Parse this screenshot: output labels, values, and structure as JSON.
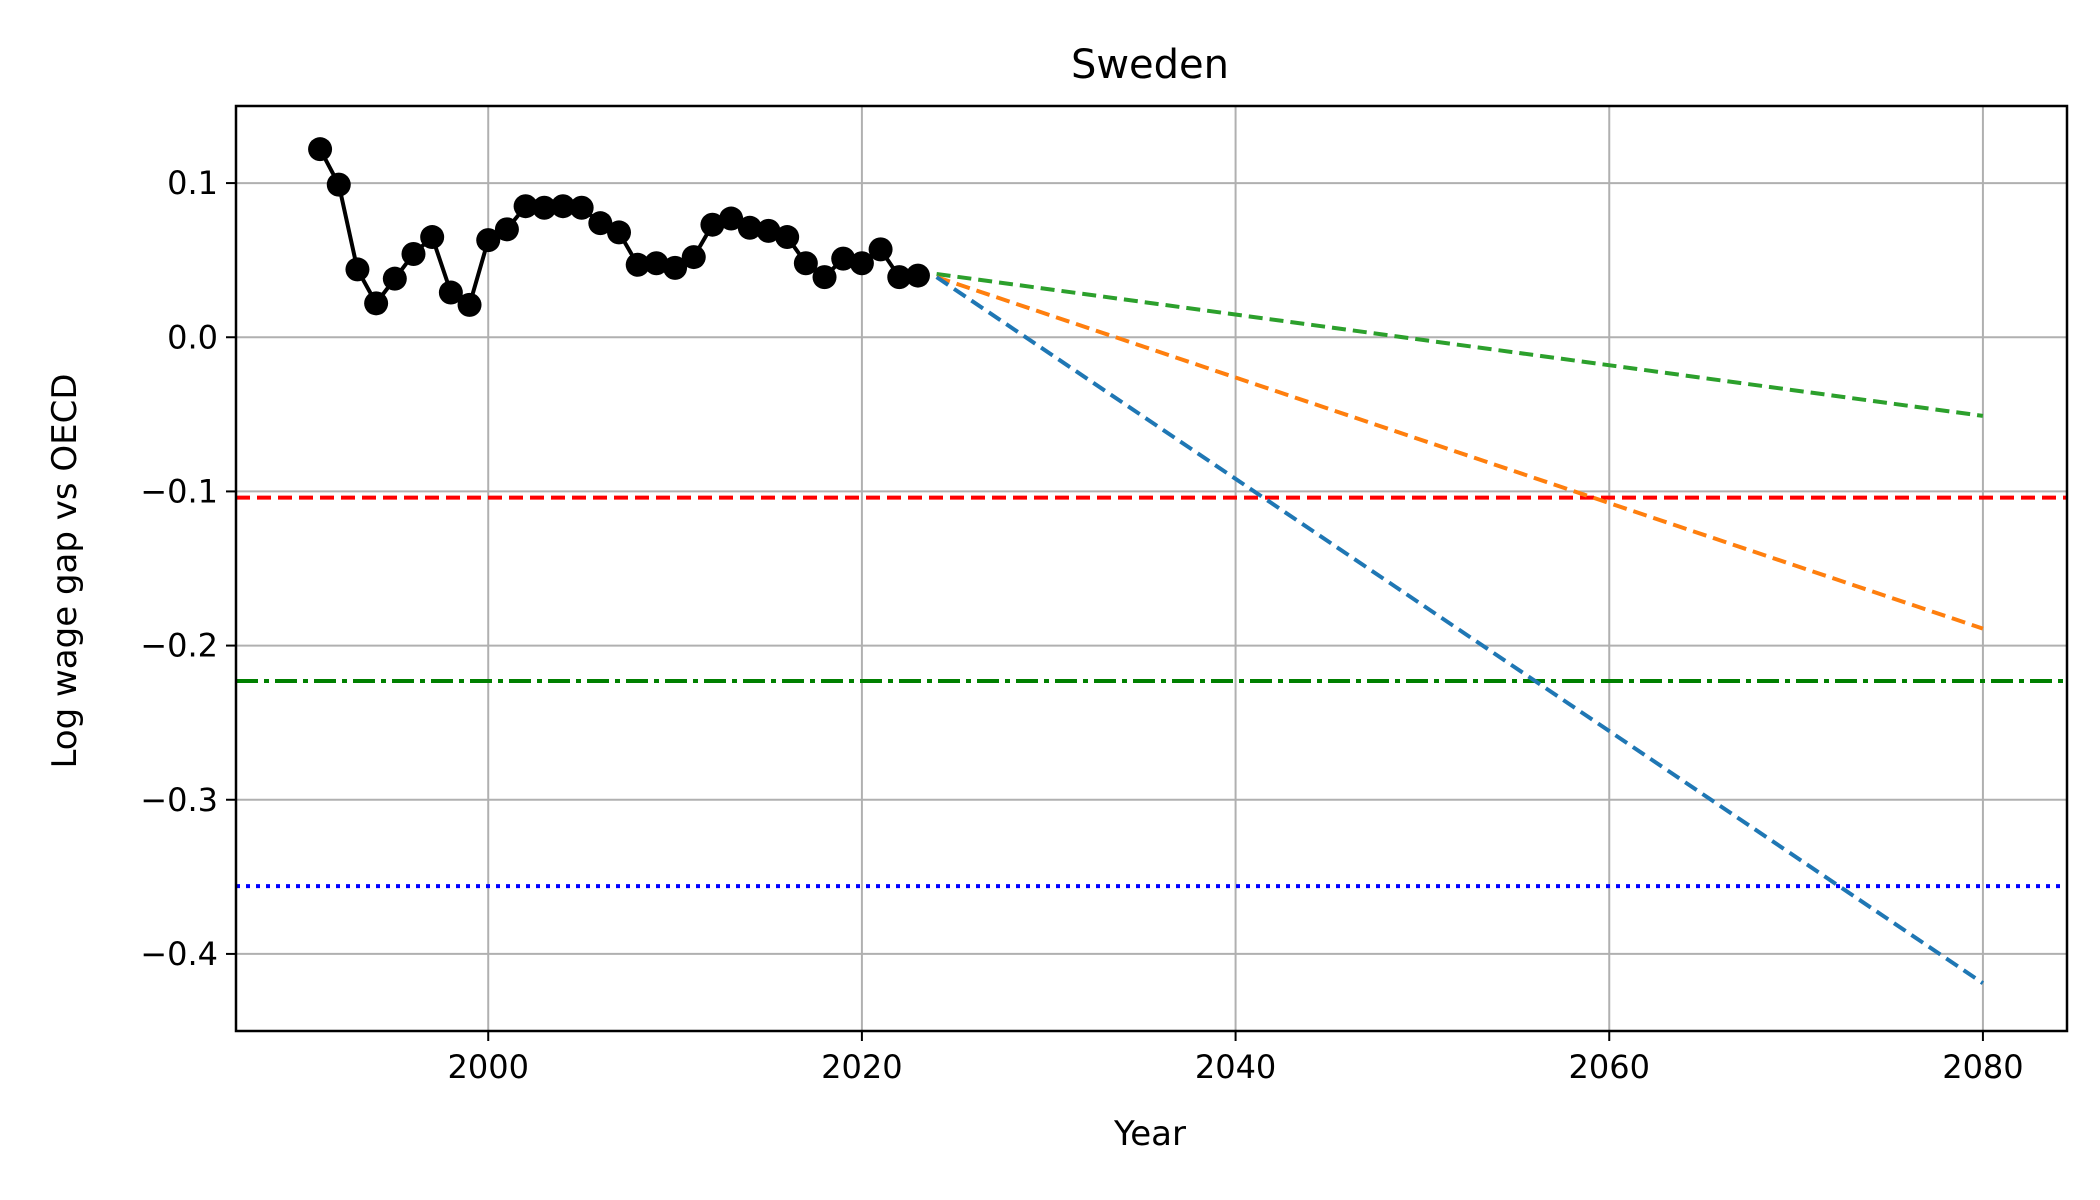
{
  "chart_data": {
    "type": "line",
    "title": "Sweden",
    "xlabel": "Year",
    "ylabel": "Log wage gap vs OECD",
    "xlim": [
      1986.5,
      2084.5
    ],
    "ylim": [
      -0.45,
      0.15
    ],
    "xticks": [
      2000,
      2020,
      2040,
      2060,
      2080
    ],
    "xtick_labels": [
      "2000",
      "2020",
      "2040",
      "2060",
      "2080"
    ],
    "yticks": [
      0.1,
      0.0,
      -0.1,
      -0.2,
      -0.3,
      -0.4
    ],
    "ytick_labels": [
      "0.1",
      "0.0",
      "−0.1",
      "−0.2",
      "−0.3",
      "−0.4"
    ],
    "grid": true,
    "series": [
      {
        "kind": "historical",
        "color": "#000000",
        "style": "solid-markers",
        "x": [
          1991,
          1992,
          1993,
          1994,
          1995,
          1996,
          1997,
          1998,
          1999,
          2000,
          2001,
          2002,
          2003,
          2004,
          2005,
          2006,
          2007,
          2008,
          2009,
          2010,
          2011,
          2012,
          2013,
          2014,
          2015,
          2016,
          2017,
          2018,
          2019,
          2020,
          2021,
          2022,
          2023
        ],
        "y": [
          0.122,
          0.099,
          0.044,
          0.022,
          0.038,
          0.054,
          0.065,
          0.029,
          0.021,
          0.063,
          0.07,
          0.085,
          0.084,
          0.085,
          0.084,
          0.074,
          0.068,
          0.047,
          0.048,
          0.045,
          0.052,
          0.073,
          0.077,
          0.071,
          0.069,
          0.065,
          0.048,
          0.039,
          0.051,
          0.048,
          0.057,
          0.039,
          0.04
        ]
      },
      {
        "kind": "projection",
        "color": "#2ca02c",
        "style": "dashed",
        "x": [
          2024,
          2080
        ],
        "y": [
          0.041,
          -0.051
        ]
      },
      {
        "kind": "projection",
        "color": "#ff7f0e",
        "style": "dashed",
        "x": [
          2024,
          2080
        ],
        "y": [
          0.039,
          -0.189
        ]
      },
      {
        "kind": "projection",
        "color": "#1f77b4",
        "style": "dashed",
        "x": [
          2024,
          2080
        ],
        "y": [
          0.039,
          -0.419
        ]
      }
    ],
    "hlines": [
      {
        "y": -0.104,
        "color": "#ff0000",
        "style": "dashed"
      },
      {
        "y": -0.223,
        "color": "#008000",
        "style": "dashdot"
      },
      {
        "y": -0.356,
        "color": "#0000ff",
        "style": "dotted"
      }
    ]
  }
}
